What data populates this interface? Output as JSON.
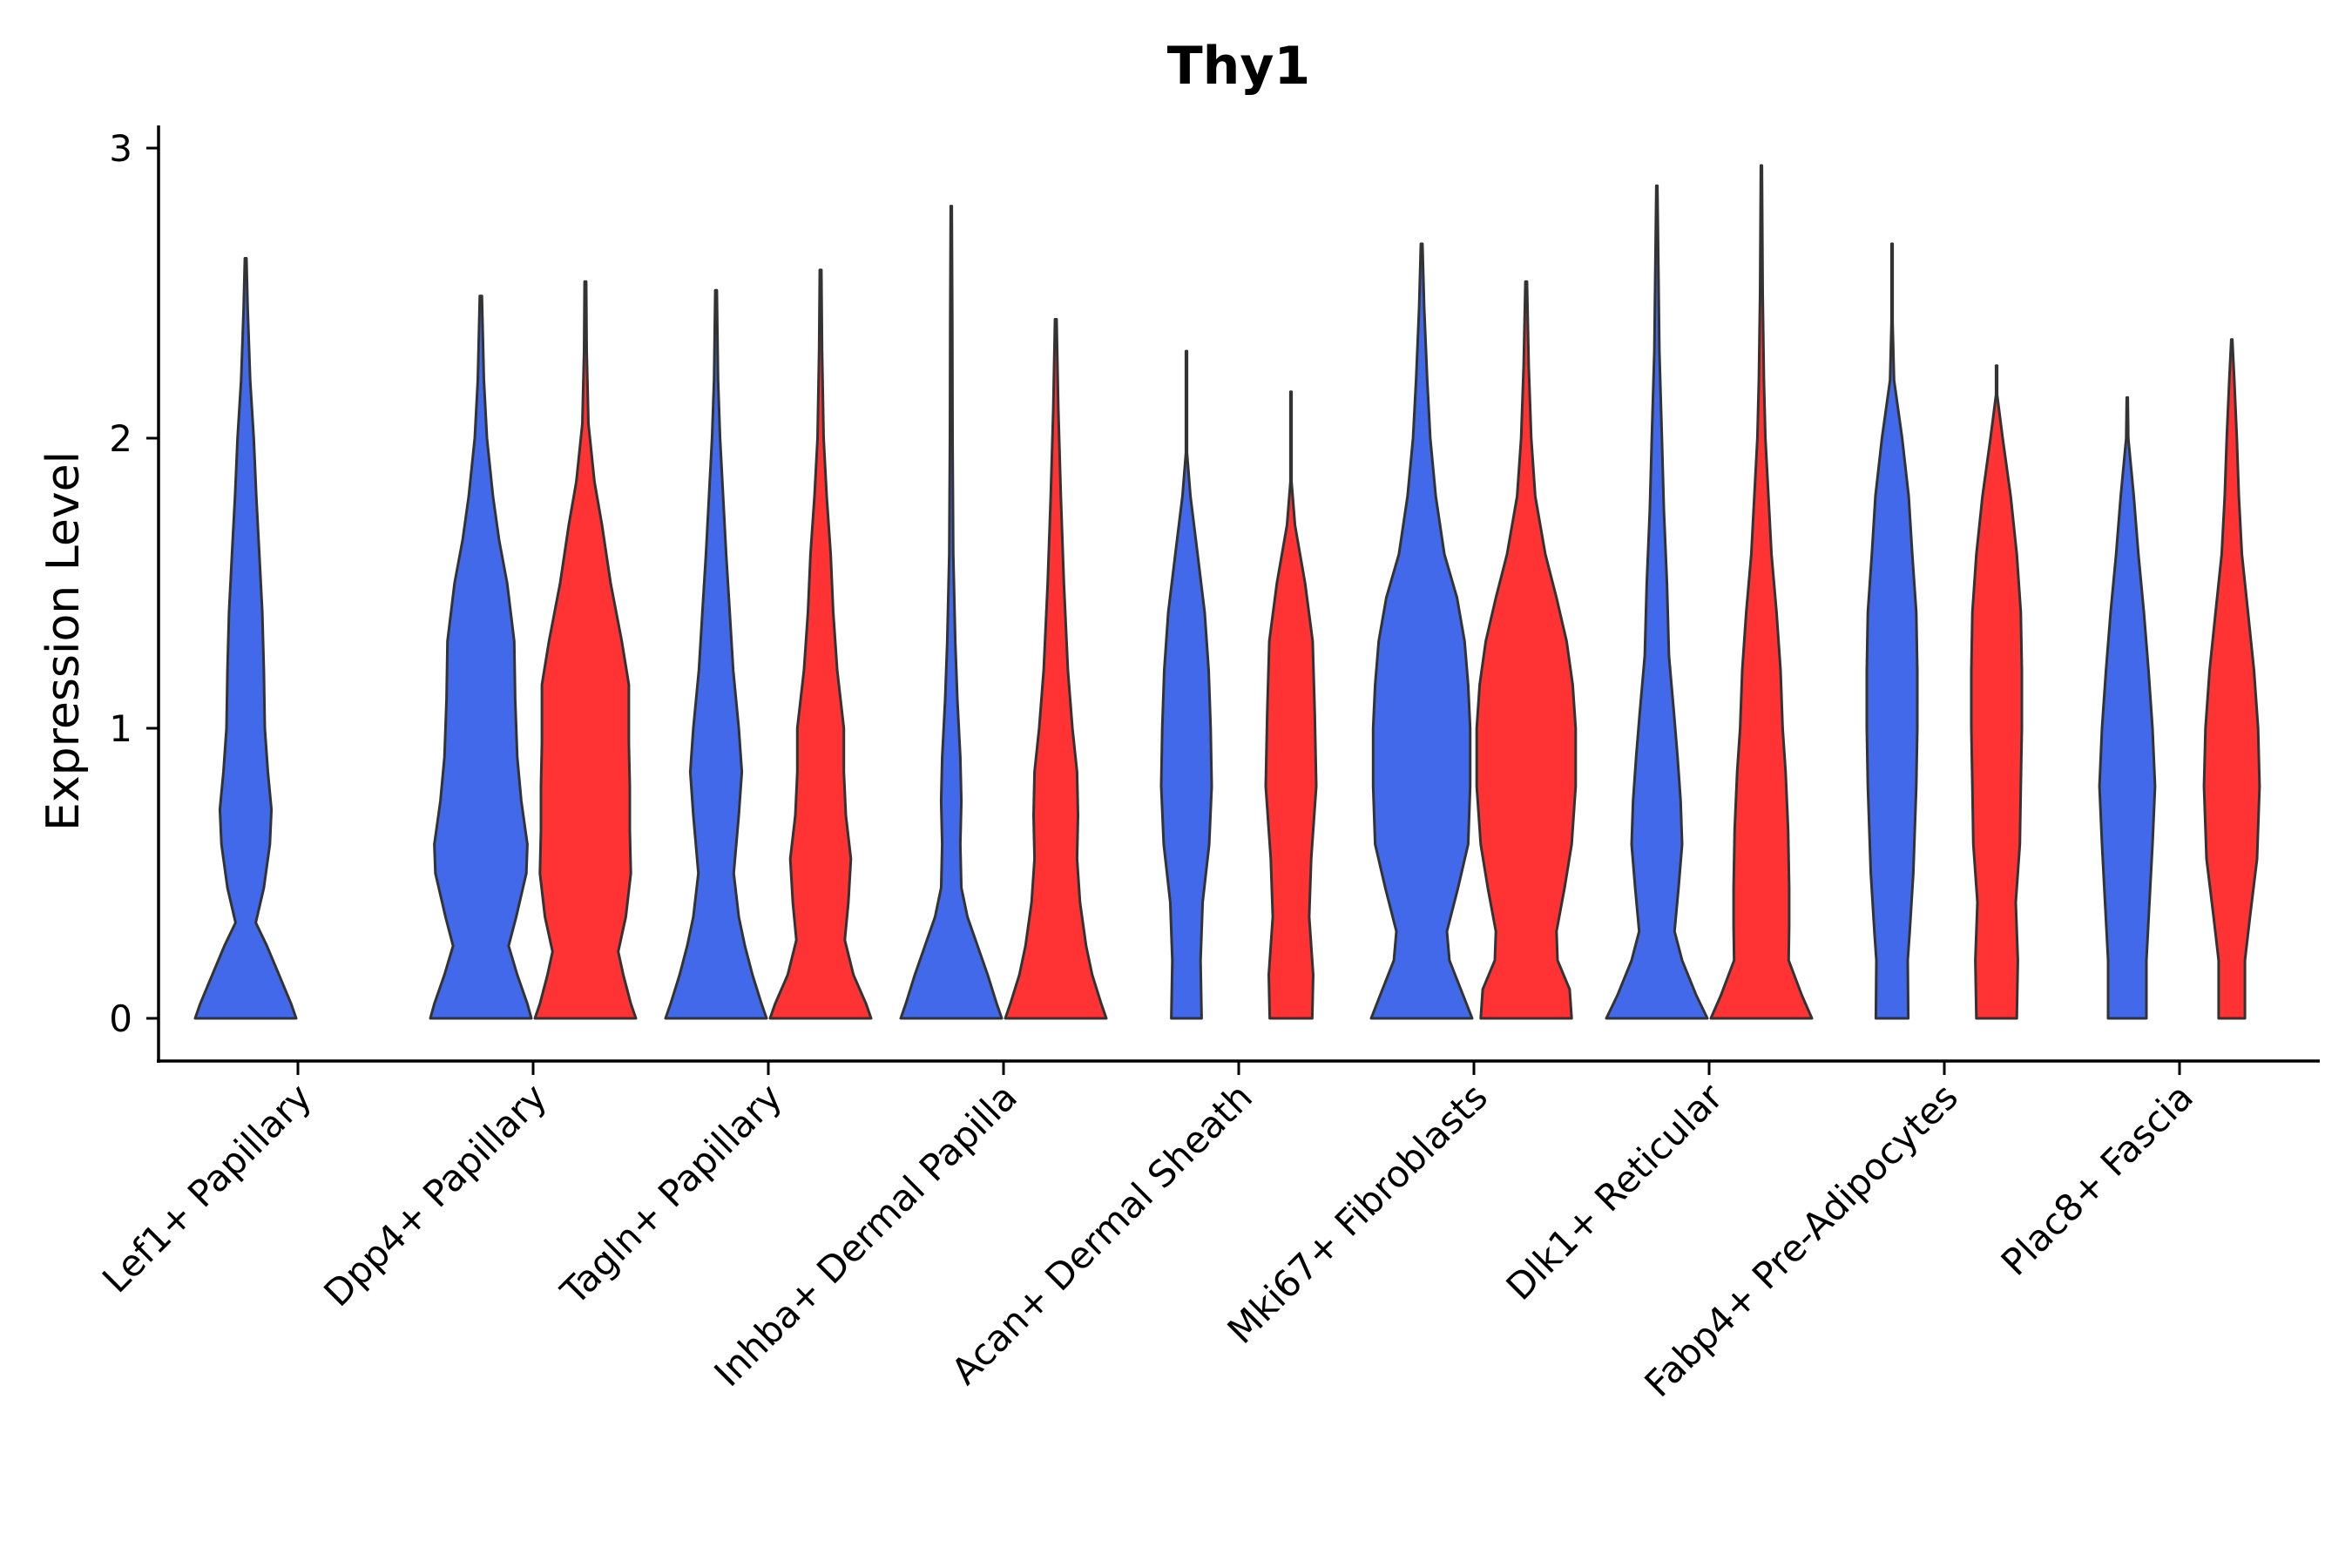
{
  "chart_data": {
    "type": "violin",
    "title": "Thy1",
    "xlabel": "",
    "ylabel": "Expression Level",
    "ylim": [
      -0.15,
      3.08
    ],
    "y_ticks": [
      0,
      1,
      2,
      3
    ],
    "colors": {
      "group_a": "#4169E9",
      "group_b": "#FF3333",
      "outline": "#333333"
    },
    "categories": [
      "Lef1+ Papillary",
      "Dpp4+ Papillary",
      "Tagln+ Papillary",
      "Inhba+ Dermal Papilla",
      "Acan+ Dermal Sheath",
      "Mki67+ Fibroblasts",
      "Dlk1+ Reticular",
      "Fabp4+ Pre-Adipocytes",
      "Plac8+ Fascia"
    ],
    "violins": [
      {
        "category": 0,
        "group": "group_a",
        "max": 2.62,
        "profile": [
          [
            0,
            1
          ],
          [
            0.05,
            0.9
          ],
          [
            0.15,
            0.66
          ],
          [
            0.25,
            0.42
          ],
          [
            0.33,
            0.2
          ],
          [
            0.45,
            0.36
          ],
          [
            0.6,
            0.48
          ],
          [
            0.72,
            0.51
          ],
          [
            0.85,
            0.44
          ],
          [
            1.0,
            0.38
          ],
          [
            1.2,
            0.36
          ],
          [
            1.4,
            0.33
          ],
          [
            1.6,
            0.27
          ],
          [
            1.8,
            0.21
          ],
          [
            2.0,
            0.16
          ],
          [
            2.2,
            0.09
          ],
          [
            2.45,
            0.04
          ],
          [
            2.62,
            0.015
          ]
        ]
      },
      {
        "category": 1,
        "group": "group_a",
        "max": 2.49,
        "profile": [
          [
            0,
            1
          ],
          [
            0.05,
            0.92
          ],
          [
            0.15,
            0.72
          ],
          [
            0.25,
            0.55
          ],
          [
            0.35,
            0.7
          ],
          [
            0.5,
            0.9
          ],
          [
            0.6,
            0.92
          ],
          [
            0.75,
            0.8
          ],
          [
            0.9,
            0.72
          ],
          [
            1.1,
            0.68
          ],
          [
            1.3,
            0.66
          ],
          [
            1.5,
            0.52
          ],
          [
            1.65,
            0.36
          ],
          [
            1.8,
            0.24
          ],
          [
            2.0,
            0.12
          ],
          [
            2.2,
            0.06
          ],
          [
            2.49,
            0.02
          ]
        ]
      },
      {
        "category": 1,
        "group": "group_b",
        "max": 2.54,
        "profile": [
          [
            0,
            1
          ],
          [
            0.05,
            0.9
          ],
          [
            0.15,
            0.75
          ],
          [
            0.23,
            0.65
          ],
          [
            0.35,
            0.8
          ],
          [
            0.5,
            0.9
          ],
          [
            0.65,
            0.88
          ],
          [
            0.8,
            0.88
          ],
          [
            0.95,
            0.86
          ],
          [
            1.15,
            0.86
          ],
          [
            1.3,
            0.72
          ],
          [
            1.5,
            0.5
          ],
          [
            1.7,
            0.33
          ],
          [
            1.85,
            0.18
          ],
          [
            2.05,
            0.06
          ],
          [
            2.3,
            0.025
          ],
          [
            2.54,
            0.015
          ]
        ]
      },
      {
        "category": 2,
        "group": "group_a",
        "max": 2.51,
        "profile": [
          [
            0,
            1
          ],
          [
            0.05,
            0.9
          ],
          [
            0.15,
            0.72
          ],
          [
            0.25,
            0.57
          ],
          [
            0.35,
            0.45
          ],
          [
            0.5,
            0.35
          ],
          [
            0.7,
            0.45
          ],
          [
            0.85,
            0.51
          ],
          [
            1.0,
            0.45
          ],
          [
            1.2,
            0.34
          ],
          [
            1.4,
            0.27
          ],
          [
            1.6,
            0.2
          ],
          [
            1.8,
            0.14
          ],
          [
            2.0,
            0.08
          ],
          [
            2.2,
            0.04
          ],
          [
            2.51,
            0.015
          ]
        ]
      },
      {
        "category": 2,
        "group": "group_b",
        "max": 2.58,
        "profile": [
          [
            0,
            1
          ],
          [
            0.05,
            0.9
          ],
          [
            0.15,
            0.65
          ],
          [
            0.27,
            0.48
          ],
          [
            0.4,
            0.55
          ],
          [
            0.55,
            0.6
          ],
          [
            0.7,
            0.5
          ],
          [
            0.85,
            0.46
          ],
          [
            1.0,
            0.46
          ],
          [
            1.2,
            0.33
          ],
          [
            1.4,
            0.25
          ],
          [
            1.6,
            0.2
          ],
          [
            1.8,
            0.12
          ],
          [
            2.0,
            0.06
          ],
          [
            2.3,
            0.03
          ],
          [
            2.58,
            0.015
          ]
        ]
      },
      {
        "category": 3,
        "group": "group_a",
        "max": 2.8,
        "profile": [
          [
            0,
            1
          ],
          [
            0.05,
            0.9
          ],
          [
            0.15,
            0.72
          ],
          [
            0.25,
            0.52
          ],
          [
            0.35,
            0.32
          ],
          [
            0.45,
            0.2
          ],
          [
            0.6,
            0.18
          ],
          [
            0.75,
            0.2
          ],
          [
            0.9,
            0.18
          ],
          [
            1.1,
            0.12
          ],
          [
            1.3,
            0.08
          ],
          [
            1.6,
            0.04
          ],
          [
            2.0,
            0.025
          ],
          [
            2.4,
            0.02
          ],
          [
            2.8,
            0.01
          ]
        ]
      },
      {
        "category": 3,
        "group": "group_b",
        "max": 2.41,
        "profile": [
          [
            0,
            1
          ],
          [
            0.05,
            0.9
          ],
          [
            0.15,
            0.72
          ],
          [
            0.25,
            0.6
          ],
          [
            0.4,
            0.48
          ],
          [
            0.55,
            0.42
          ],
          [
            0.7,
            0.44
          ],
          [
            0.85,
            0.42
          ],
          [
            1.0,
            0.33
          ],
          [
            1.2,
            0.24
          ],
          [
            1.5,
            0.16
          ],
          [
            1.8,
            0.1
          ],
          [
            2.1,
            0.05
          ],
          [
            2.41,
            0.015
          ]
        ]
      },
      {
        "category": 4,
        "group": "group_a",
        "max": 2.3,
        "profile": [
          [
            0,
            0.3
          ],
          [
            0.2,
            0.28
          ],
          [
            0.4,
            0.32
          ],
          [
            0.6,
            0.45
          ],
          [
            0.8,
            0.5
          ],
          [
            1.0,
            0.48
          ],
          [
            1.2,
            0.44
          ],
          [
            1.4,
            0.36
          ],
          [
            1.6,
            0.22
          ],
          [
            1.8,
            0.08
          ],
          [
            1.95,
            -0.02
          ],
          [
            2.1,
            -0.08
          ],
          [
            2.3,
            -0.08
          ]
        ]
      },
      {
        "category": 4,
        "group": "group_b",
        "max": 2.16,
        "profile": [
          [
            0,
            0.42
          ],
          [
            0.15,
            0.44
          ],
          [
            0.35,
            0.36
          ],
          [
            0.55,
            0.4
          ],
          [
            0.8,
            0.5
          ],
          [
            1.05,
            0.47
          ],
          [
            1.3,
            0.43
          ],
          [
            1.5,
            0.28
          ],
          [
            1.7,
            0.08
          ],
          [
            1.85,
            -0.08
          ],
          [
            2.0,
            -0.1
          ],
          [
            2.16,
            -0.1
          ]
        ]
      },
      {
        "category": 5,
        "group": "group_a",
        "max": 2.67,
        "profile": [
          [
            0,
            1
          ],
          [
            0.08,
            0.82
          ],
          [
            0.2,
            0.55
          ],
          [
            0.3,
            0.5
          ],
          [
            0.45,
            0.72
          ],
          [
            0.6,
            0.92
          ],
          [
            0.8,
            0.96
          ],
          [
            1.0,
            0.96
          ],
          [
            1.15,
            0.92
          ],
          [
            1.3,
            0.85
          ],
          [
            1.45,
            0.7
          ],
          [
            1.6,
            0.45
          ],
          [
            1.8,
            0.28
          ],
          [
            2.0,
            0.17
          ],
          [
            2.2,
            0.11
          ],
          [
            2.45,
            0.05
          ],
          [
            2.67,
            0.015
          ]
        ]
      },
      {
        "category": 5,
        "group": "group_b",
        "max": 2.54,
        "profile": [
          [
            0,
            0.9
          ],
          [
            0.1,
            0.86
          ],
          [
            0.2,
            0.62
          ],
          [
            0.3,
            0.6
          ],
          [
            0.45,
            0.76
          ],
          [
            0.6,
            0.9
          ],
          [
            0.8,
            0.98
          ],
          [
            1.0,
            0.98
          ],
          [
            1.15,
            0.92
          ],
          [
            1.3,
            0.8
          ],
          [
            1.45,
            0.6
          ],
          [
            1.6,
            0.38
          ],
          [
            1.8,
            0.18
          ],
          [
            2.0,
            0.1
          ],
          [
            2.25,
            0.05
          ],
          [
            2.54,
            0.015
          ]
        ]
      },
      {
        "category": 6,
        "group": "group_a",
        "max": 2.87,
        "profile": [
          [
            0,
            1
          ],
          [
            0.08,
            0.78
          ],
          [
            0.2,
            0.5
          ],
          [
            0.3,
            0.35
          ],
          [
            0.45,
            0.43
          ],
          [
            0.6,
            0.5
          ],
          [
            0.75,
            0.47
          ],
          [
            0.9,
            0.41
          ],
          [
            1.05,
            0.34
          ],
          [
            1.25,
            0.24
          ],
          [
            1.5,
            0.2
          ],
          [
            1.75,
            0.14
          ],
          [
            2.0,
            0.1
          ],
          [
            2.3,
            0.05
          ],
          [
            2.6,
            0.03
          ],
          [
            2.87,
            0.01
          ]
        ]
      },
      {
        "category": 6,
        "group": "group_b",
        "max": 2.94,
        "profile": [
          [
            0,
            1
          ],
          [
            0.08,
            0.8
          ],
          [
            0.2,
            0.54
          ],
          [
            0.32,
            0.55
          ],
          [
            0.45,
            0.55
          ],
          [
            0.65,
            0.53
          ],
          [
            0.85,
            0.48
          ],
          [
            1.0,
            0.42
          ],
          [
            1.2,
            0.38
          ],
          [
            1.4,
            0.3
          ],
          [
            1.6,
            0.2
          ],
          [
            1.8,
            0.14
          ],
          [
            2.0,
            0.08
          ],
          [
            2.2,
            0.05
          ],
          [
            2.5,
            0.025
          ],
          [
            2.94,
            0.01
          ]
        ]
      },
      {
        "category": 7,
        "group": "group_a",
        "max": 2.67,
        "profile": [
          [
            0,
            0.32
          ],
          [
            0.2,
            0.31
          ],
          [
            0.3,
            0.35
          ],
          [
            0.5,
            0.42
          ],
          [
            0.8,
            0.48
          ],
          [
            1.0,
            0.5
          ],
          [
            1.2,
            0.5
          ],
          [
            1.4,
            0.48
          ],
          [
            1.6,
            0.4
          ],
          [
            1.8,
            0.33
          ],
          [
            2.0,
            0.2
          ],
          [
            2.2,
            0.04
          ],
          [
            2.4,
            -0.04
          ],
          [
            2.67,
            -0.05
          ]
        ]
      },
      {
        "category": 7,
        "group": "group_b",
        "max": 2.25,
        "profile": [
          [
            0,
            0.4
          ],
          [
            0.2,
            0.42
          ],
          [
            0.4,
            0.38
          ],
          [
            0.6,
            0.46
          ],
          [
            0.8,
            0.48
          ],
          [
            1.0,
            0.5
          ],
          [
            1.2,
            0.5
          ],
          [
            1.4,
            0.48
          ],
          [
            1.6,
            0.4
          ],
          [
            1.8,
            0.28
          ],
          [
            2.0,
            0.12
          ],
          [
            2.15,
            -0.06
          ],
          [
            2.25,
            -0.1
          ]
        ]
      },
      {
        "category": 8,
        "group": "group_a",
        "max": 2.14,
        "profile": [
          [
            0,
            0.38
          ],
          [
            0.2,
            0.38
          ],
          [
            0.4,
            0.44
          ],
          [
            0.6,
            0.5
          ],
          [
            0.8,
            0.55
          ],
          [
            1.0,
            0.5
          ],
          [
            1.2,
            0.42
          ],
          [
            1.4,
            0.33
          ],
          [
            1.6,
            0.22
          ],
          [
            1.8,
            0.13
          ],
          [
            2.0,
            0.02
          ],
          [
            2.14,
            -0.06
          ]
        ]
      },
      {
        "category": 8,
        "group": "group_b",
        "max": 2.34,
        "profile": [
          [
            0,
            0.26
          ],
          [
            0.2,
            0.26
          ],
          [
            0.35,
            0.36
          ],
          [
            0.55,
            0.5
          ],
          [
            0.8,
            0.55
          ],
          [
            1.0,
            0.52
          ],
          [
            1.2,
            0.44
          ],
          [
            1.4,
            0.32
          ],
          [
            1.6,
            0.2
          ],
          [
            1.8,
            0.14
          ],
          [
            2.0,
            0.1
          ],
          [
            2.2,
            0.05
          ],
          [
            2.34,
            -0.02
          ]
        ]
      }
    ]
  }
}
